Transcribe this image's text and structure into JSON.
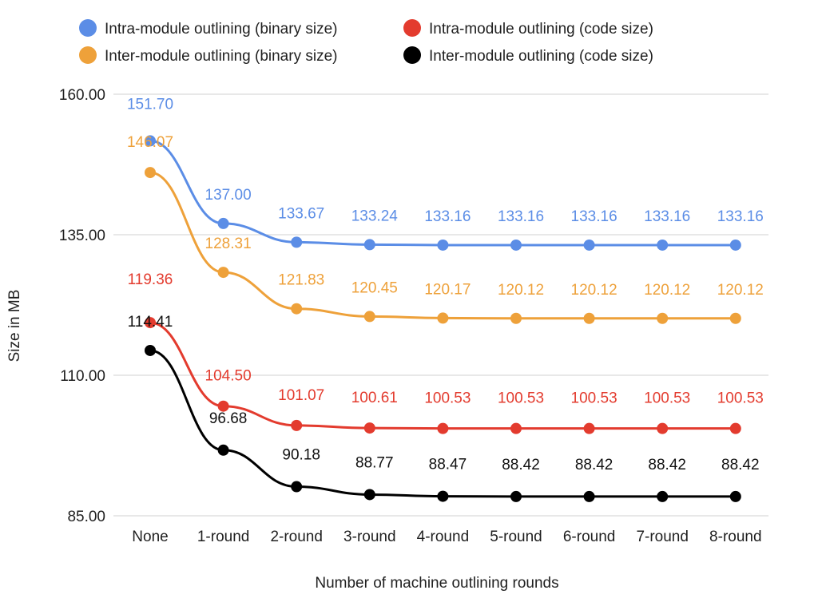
{
  "chart_data": {
    "type": "line",
    "title": "",
    "xlabel": "Number of machine outlining rounds",
    "ylabel": "Size in MB",
    "categories": [
      "None",
      "1-round",
      "2-round",
      "3-round",
      "4-round",
      "5-round",
      "6-round",
      "7-round",
      "8-round"
    ],
    "ylim": [
      85,
      160
    ],
    "yticks": [
      85,
      110,
      135,
      160
    ],
    "ytick_labels": [
      "85.00",
      "110.00",
      "135.00",
      "160.00"
    ],
    "grid": true,
    "legend_position": "top",
    "series": [
      {
        "name": "Intra-module outlining (binary size)",
        "color": "#5b8de6",
        "values": [
          151.7,
          137.0,
          133.67,
          133.24,
          133.16,
          133.16,
          133.16,
          133.16,
          133.16
        ],
        "labels": [
          "151.70",
          "137.00",
          "133.67",
          "133.24",
          "133.16",
          "133.16",
          "133.16",
          "133.16",
          "133.16"
        ]
      },
      {
        "name": "Inter-module outlining (binary size)",
        "color": "#eea13a",
        "values": [
          146.07,
          128.31,
          121.83,
          120.45,
          120.17,
          120.12,
          120.12,
          120.12,
          120.12
        ],
        "labels": [
          "146.07",
          "128.31",
          "121.83",
          "120.45",
          "120.17",
          "120.12",
          "120.12",
          "120.12",
          "120.12"
        ]
      },
      {
        "name": "Intra-module outlining (code size)",
        "color": "#e33b2e",
        "values": [
          119.36,
          104.5,
          101.07,
          100.61,
          100.53,
          100.53,
          100.53,
          100.53,
          100.53
        ],
        "labels": [
          "119.36",
          "104.50",
          "101.07",
          "100.61",
          "100.53",
          "100.53",
          "100.53",
          "100.53",
          "100.53"
        ]
      },
      {
        "name": "Inter-module outlining (code size)",
        "color": "#000000",
        "values": [
          114.41,
          96.68,
          90.18,
          88.77,
          88.47,
          88.42,
          88.42,
          88.42,
          88.42
        ],
        "labels": [
          "114.41",
          "96.68",
          "90.18",
          "88.77",
          "88.47",
          "88.42",
          "88.42",
          "88.42",
          "88.42"
        ]
      }
    ]
  }
}
